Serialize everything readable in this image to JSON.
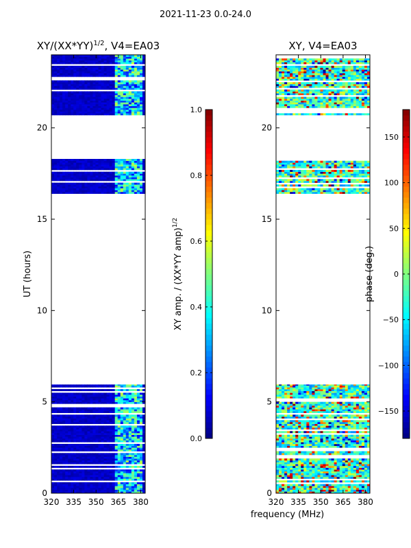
{
  "suptitle": "2021-11-23 0.0-24.0",
  "chart_data": [
    {
      "type": "heatmap",
      "title": "XY/(XX*YY)",
      "title_superscript": "1/2",
      "title_suffix": ", V4=EA03",
      "xlabel": "",
      "ylabel": "UT (hours)",
      "xlim": [
        320,
        383
      ],
      "ylim": [
        0,
        24
      ],
      "xticks": [
        320,
        335,
        350,
        365,
        380
      ],
      "yticks": [
        0,
        5,
        10,
        15,
        20
      ],
      "data_hour_ranges": [
        [
          0,
          5.95
        ],
        [
          16.4,
          18.3
        ],
        [
          20.7,
          24
        ]
      ],
      "colorbar": {
        "label": "XY amp. / (XX*YY amp)",
        "label_superscript": "1/2",
        "range": [
          0,
          1
        ],
        "ticks": [
          "0.0",
          "0.2",
          "0.4",
          "0.6",
          "0.8",
          "1.0"
        ]
      }
    },
    {
      "type": "heatmap",
      "title": "XY, V4=EA03",
      "xlabel": "frequency (MHz)",
      "ylabel": "",
      "xlim": [
        320,
        383
      ],
      "ylim": [
        0,
        24
      ],
      "xticks": [
        320,
        335,
        350,
        365,
        380
      ],
      "yticks": [
        0,
        5,
        10,
        15,
        20
      ],
      "data_hour_ranges": [
        [
          0,
          5.95
        ],
        [
          16.4,
          18.3
        ],
        [
          20.7,
          24
        ]
      ],
      "colorbar": {
        "label": "phase (deg.)",
        "range": [
          -180,
          180
        ],
        "ticks": [
          -150,
          -100,
          -50,
          0,
          50,
          100,
          150
        ]
      }
    }
  ]
}
